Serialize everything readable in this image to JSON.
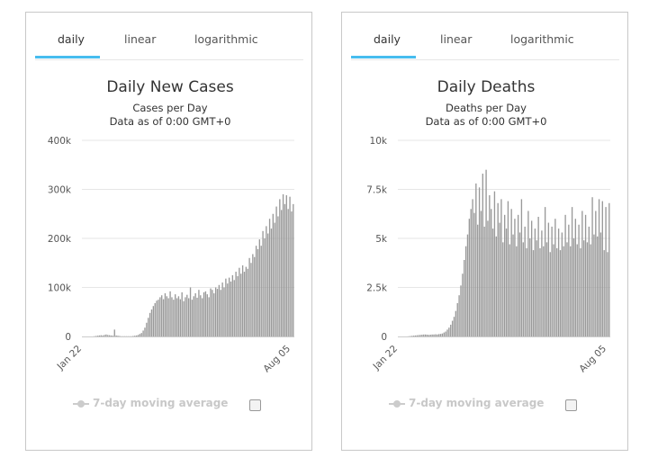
{
  "tabs": [
    "daily",
    "linear",
    "logarithmic"
  ],
  "charts": [
    {
      "title": "Daily New Cases",
      "subtitle1": "Cases per Day",
      "subtitle2": "Data as of 0:00 GMT+0",
      "legend": "7-day moving average",
      "ymax": 400000,
      "yticks": [
        0,
        100000,
        200000,
        300000,
        400000
      ],
      "ytick_labels": [
        "0",
        "100k",
        "200k",
        "300k",
        "400k"
      ],
      "xtick_labels": [
        "Jan 22",
        "Aug 05"
      ],
      "chart_data": {
        "type": "bar",
        "x_start": "Jan 22",
        "x_end": "Aug 05",
        "ylim": [
          0,
          400000
        ],
        "values": [
          0,
          0,
          0,
          0,
          0,
          0,
          0,
          500,
          1000,
          1500,
          2000,
          2500,
          2000,
          3000,
          4000,
          3000,
          2500,
          2000,
          1500,
          14000,
          2000,
          1500,
          1000,
          500,
          500,
          500,
          500,
          500,
          500,
          500,
          1000,
          1500,
          2000,
          3000,
          5000,
          7000,
          12000,
          18000,
          28000,
          38000,
          48000,
          55000,
          62000,
          68000,
          73000,
          75000,
          80000,
          84000,
          76000,
          88000,
          82000,
          78000,
          92000,
          80000,
          75000,
          86000,
          78000,
          82000,
          76000,
          90000,
          72000,
          80000,
          85000,
          78000,
          100000,
          75000,
          82000,
          88000,
          79000,
          95000,
          84000,
          78000,
          90000,
          92000,
          86000,
          80000,
          98000,
          95000,
          88000,
          100000,
          97000,
          105000,
          95000,
          110000,
          100000,
          118000,
          108000,
          120000,
          112000,
          125000,
          115000,
          132000,
          123000,
          140000,
          128000,
          145000,
          132000,
          142000,
          138000,
          160000,
          150000,
          168000,
          162000,
          185000,
          178000,
          198000,
          185000,
          215000,
          200000,
          225000,
          210000,
          240000,
          220000,
          250000,
          232000,
          265000,
          245000,
          280000,
          258000,
          290000,
          270000,
          288000,
          260000,
          285000,
          255000,
          270000
        ]
      }
    },
    {
      "title": "Daily Deaths",
      "subtitle1": "Deaths per Day",
      "subtitle2": "Data as of 0:00 GMT+0",
      "legend": "7-day moving average",
      "ymax": 10000,
      "yticks": [
        0,
        2500,
        5000,
        7500,
        10000
      ],
      "ytick_labels": [
        "0",
        "2.5k",
        "5k",
        "7.5k",
        "10k"
      ],
      "xtick_labels": [
        "Jan 22",
        "Aug 05"
      ],
      "chart_data": {
        "type": "bar",
        "x_start": "Jan 22",
        "x_end": "Aug 05",
        "ylim": [
          0,
          10000
        ],
        "values": [
          0,
          0,
          0,
          0,
          0,
          0,
          10,
          20,
          30,
          40,
          50,
          60,
          70,
          80,
          90,
          100,
          100,
          90,
          80,
          90,
          100,
          100,
          110,
          100,
          120,
          130,
          150,
          200,
          250,
          350,
          450,
          600,
          800,
          1000,
          1300,
          1700,
          2100,
          2600,
          3200,
          3900,
          4600,
          5200,
          6000,
          6500,
          7000,
          6300,
          7800,
          5700,
          7600,
          6400,
          8300,
          5600,
          8500,
          5900,
          7200,
          6500,
          5500,
          7400,
          5100,
          6800,
          5800,
          7000,
          4800,
          6200,
          5500,
          6900,
          4700,
          6500,
          5200,
          6000,
          4600,
          6200,
          5300,
          7000,
          4800,
          5600,
          4500,
          6400,
          5000,
          5900,
          4400,
          5500,
          4900,
          6100,
          4500,
          5400,
          4600,
          6600,
          4800,
          5800,
          4300,
          5600,
          4700,
          6000,
          4500,
          5500,
          4400,
          5300,
          4600,
          6200,
          4800,
          5700,
          4600,
          6600,
          5000,
          6000,
          4700,
          5700,
          4500,
          6400,
          4900,
          6200,
          4800,
          5600,
          4700,
          7100,
          5200,
          6400,
          5100,
          7000,
          5300,
          6900,
          4400,
          6600,
          4300,
          6800
        ]
      }
    }
  ]
}
